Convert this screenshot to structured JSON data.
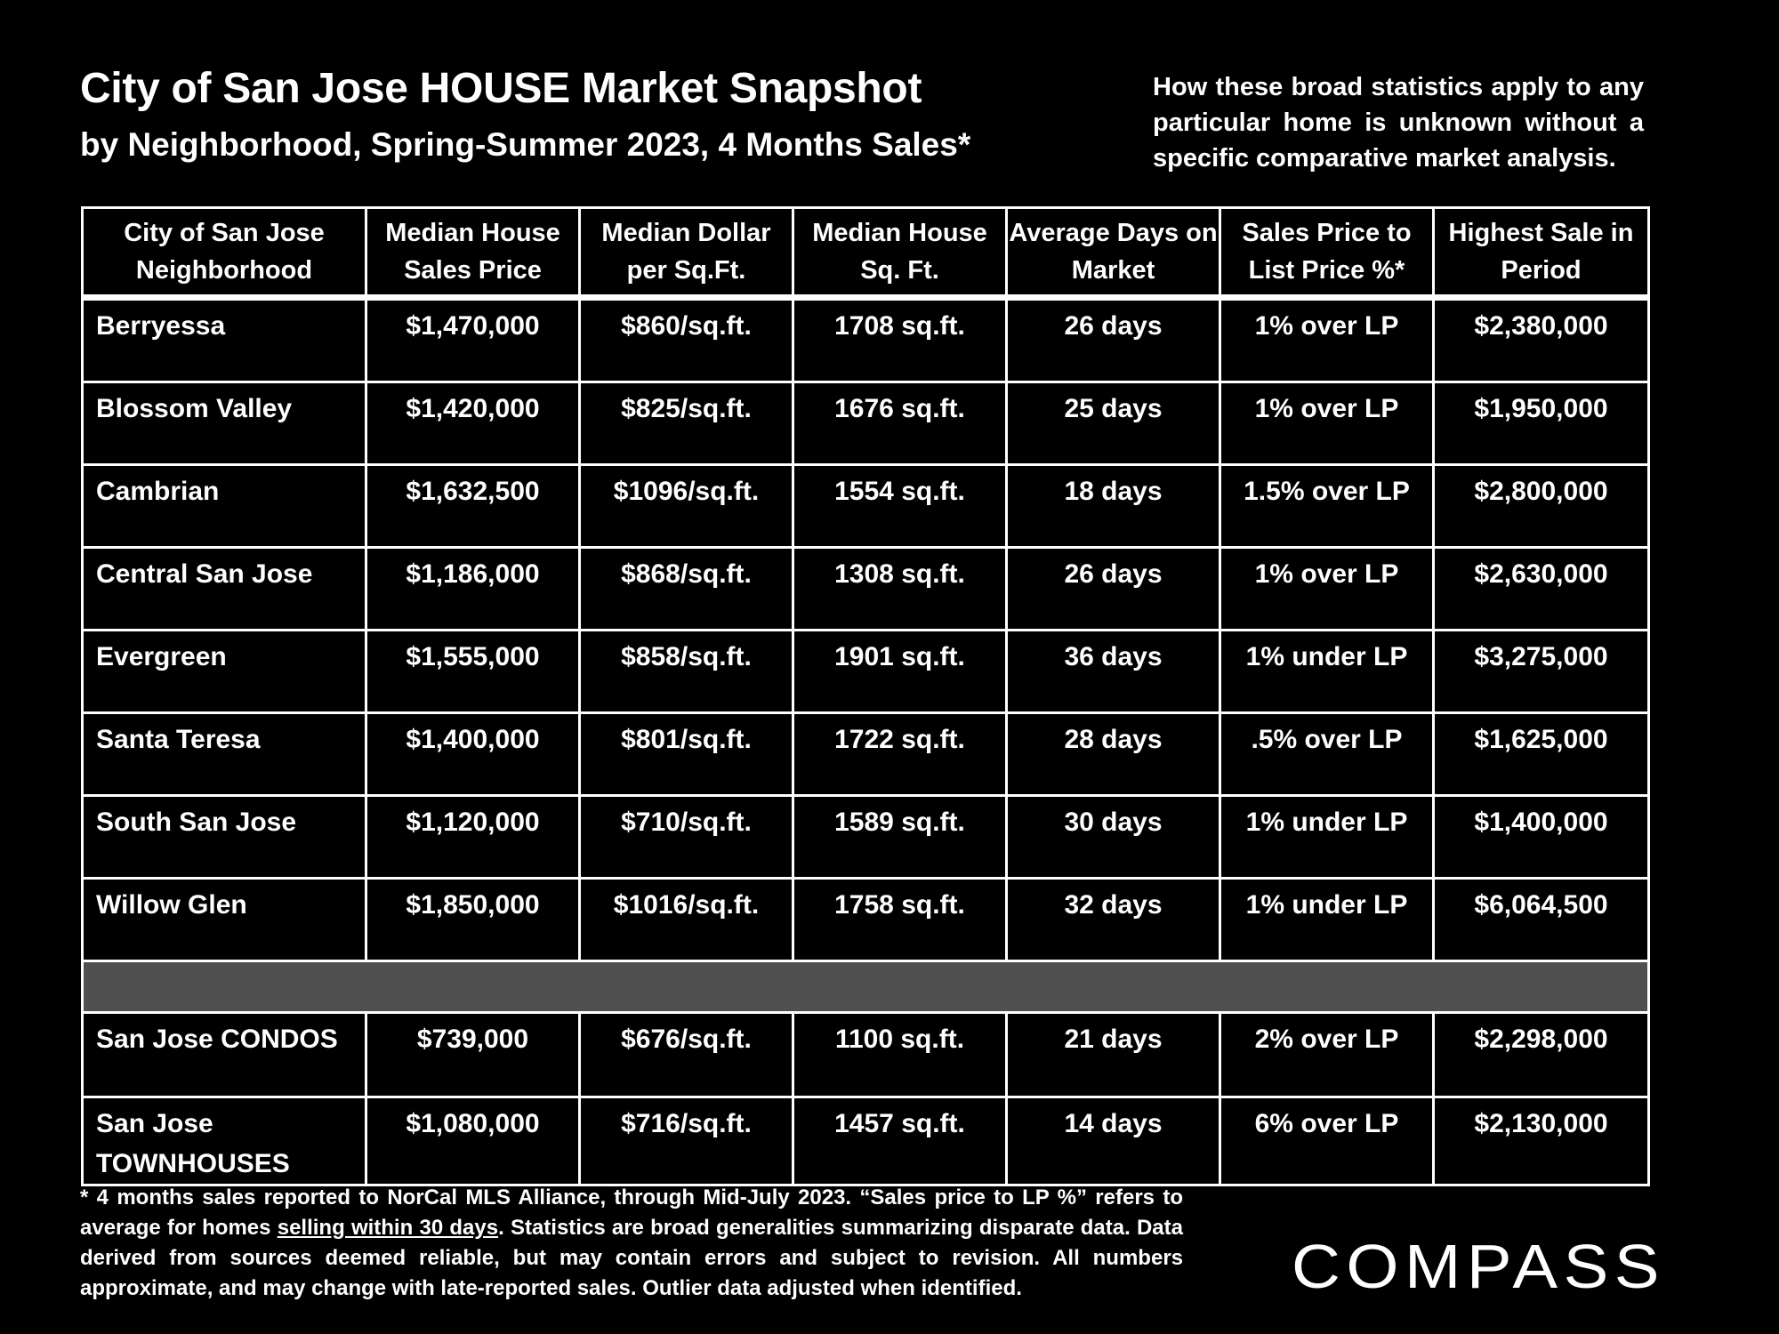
{
  "header": {
    "title": "City of San Jose HOUSE Market Snapshot",
    "subtitle": "by Neighborhood, Spring-Summer 2023, 4 Months Sales*",
    "disclaimer": "How these broad statistics apply to any particular home is unknown without a specific comparative market analysis."
  },
  "table": {
    "headers": [
      "City of San Jose Neighborhood",
      "Median House Sales Price",
      "Median Dollar per Sq.Ft.",
      "Median House Sq. Ft.",
      "Average Days on Market",
      "Sales Price to List Price %*",
      "Highest Sale in Period"
    ],
    "rows": [
      [
        "Berryessa",
        "$1,470,000",
        "$860/sq.ft.",
        "1708 sq.ft.",
        "26 days",
        "1% over LP",
        "$2,380,000"
      ],
      [
        "Blossom Valley",
        "$1,420,000",
        "$825/sq.ft.",
        "1676 sq.ft.",
        "25 days",
        "1% over LP",
        "$1,950,000"
      ],
      [
        "Cambrian",
        "$1,632,500",
        "$1096/sq.ft.",
        "1554 sq.ft.",
        "18 days",
        "1.5% over LP",
        "$2,800,000"
      ],
      [
        "Central San Jose",
        "$1,186,000",
        "$868/sq.ft.",
        "1308 sq.ft.",
        "26 days",
        "1% over LP",
        "$2,630,000"
      ],
      [
        "Evergreen",
        "$1,555,000",
        "$858/sq.ft.",
        "1901 sq.ft.",
        "36 days",
        "1% under LP",
        "$3,275,000"
      ],
      [
        "Santa Teresa",
        "$1,400,000",
        "$801/sq.ft.",
        "1722 sq.ft.",
        "28 days",
        ".5% over LP",
        "$1,625,000"
      ],
      [
        "South San Jose",
        "$1,120,000",
        "$710/sq.ft.",
        "1589 sq.ft.",
        "30 days",
        "1% under LP",
        "$1,400,000"
      ],
      [
        "Willow Glen",
        "$1,850,000",
        "$1016/sq.ft.",
        "1758 sq.ft.",
        "32 days",
        "1% under LP",
        "$6,064,500"
      ]
    ],
    "extra_rows": [
      [
        "San Jose CONDOS",
        "$739,000",
        "$676/sq.ft.",
        "1100 sq.ft.",
        "21 days",
        "2% over LP",
        "$2,298,000"
      ],
      [
        "San Jose TOWNHOUSES",
        "$1,080,000",
        "$716/sq.ft.",
        "1457 sq.ft.",
        "14 days",
        "6% over LP",
        "$2,130,000"
      ]
    ]
  },
  "footnote": {
    "before": "* 4 months sales reported to NorCal MLS Alliance, through Mid-July 2023. “Sales price to LP %” refers to average for homes ",
    "underlined": "selling within 30 days",
    "after": ". Statistics are broad generalities summarizing disparate data. Data derived from sources deemed reliable, but may contain errors and subject to revision. All numbers approximate, and may change with late-reported sales. Outlier data adjusted when identified."
  },
  "brand": {
    "logo_text": "COMPASS"
  },
  "colors": {
    "background": "#000000",
    "text": "#ffffff",
    "separator_row": "#505050"
  }
}
